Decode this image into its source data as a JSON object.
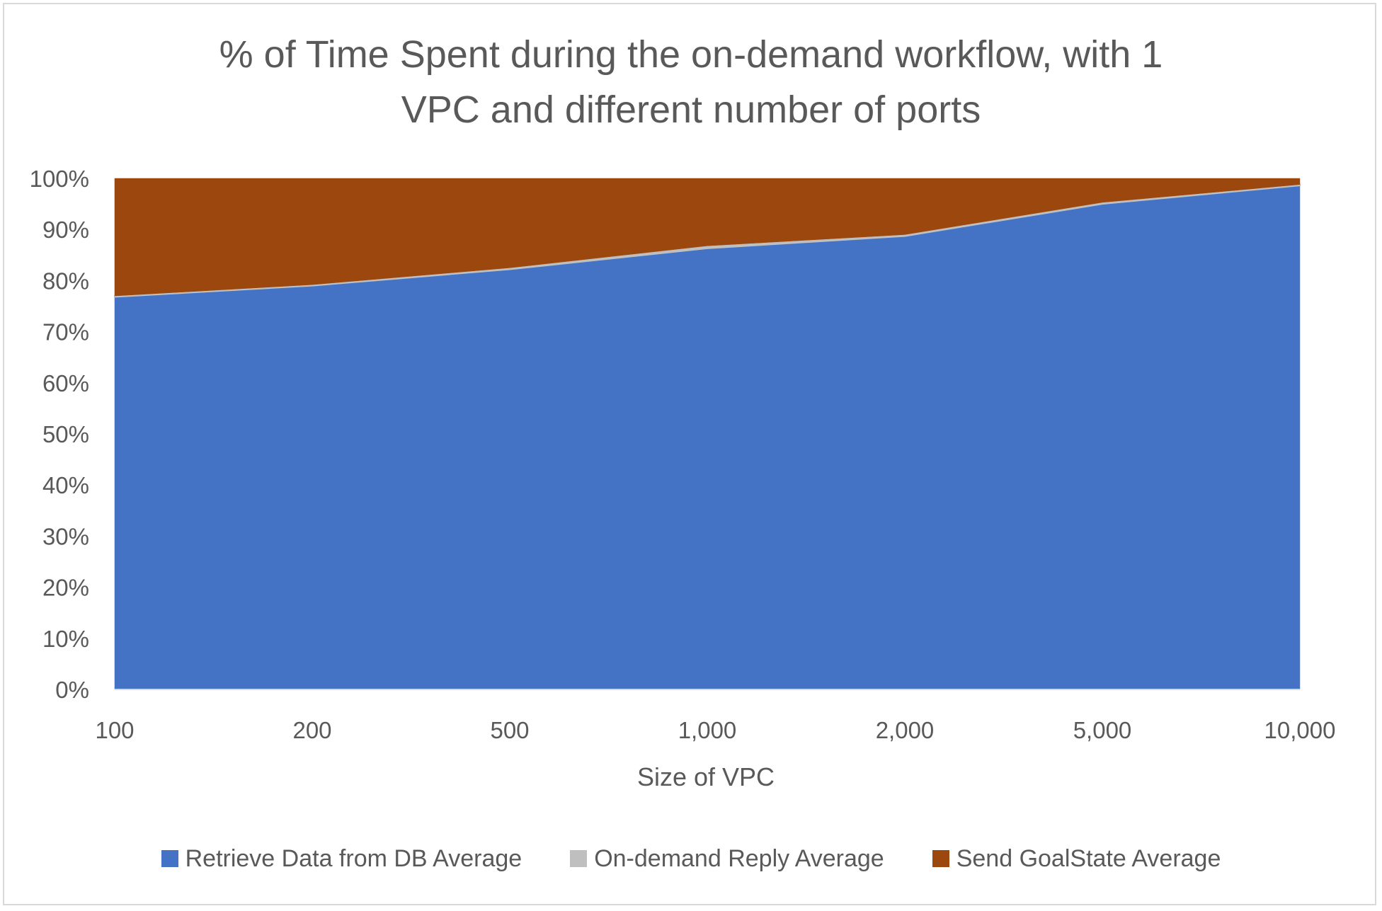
{
  "chart_data": {
    "type": "area",
    "stacked": "percent",
    "title_lines": [
      "% of Time Spent during the on-demand workflow, with 1",
      "VPC and different number of ports"
    ],
    "xlabel": "Size of VPC",
    "ylabel": "",
    "categories": [
      "100",
      "200",
      "500",
      "1,000",
      "2,000",
      "5,000",
      "10,000"
    ],
    "y_ticks": [
      "0%",
      "10%",
      "20%",
      "30%",
      "40%",
      "50%",
      "60%",
      "70%",
      "80%",
      "90%",
      "100%"
    ],
    "ylim": [
      0,
      100
    ],
    "grid": false,
    "legend_position": "bottom",
    "series": [
      {
        "name": "Retrieve Data from DB Average",
        "color": "#4472C4",
        "values": [
          76.8,
          79.0,
          82.2,
          86.3,
          88.7,
          95.0,
          98.6
        ]
      },
      {
        "name": "On-demand Reply Average",
        "color": "#BFBFBF",
        "values": [
          0.2,
          0.2,
          0.3,
          0.5,
          0.3,
          0.3,
          0.2
        ]
      },
      {
        "name": "Send GoalState Average",
        "color": "#9C470D",
        "values": [
          23.0,
          20.8,
          17.5,
          13.2,
          11.0,
          4.7,
          1.2
        ]
      }
    ]
  }
}
